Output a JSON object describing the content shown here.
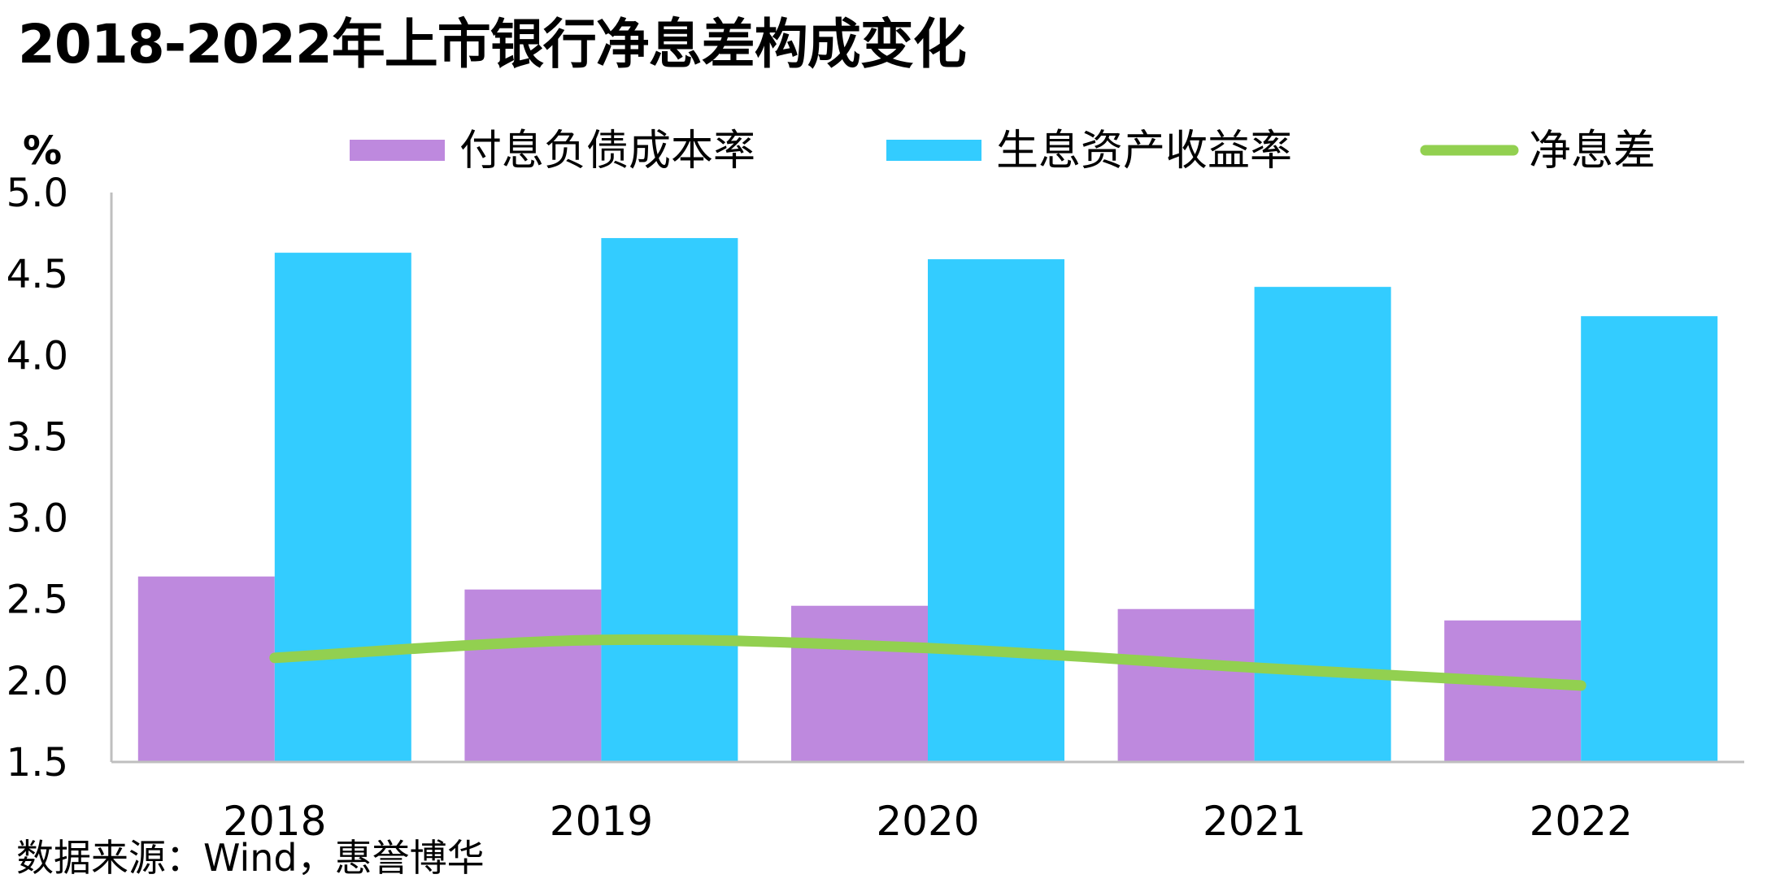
{
  "title": "2018-2022年上市银行净息差构成变化",
  "source": "数据来源：Wind，惠誉博华",
  "chart_data": {
    "type": "bar",
    "unit_label": "%",
    "categories": [
      "2018",
      "2019",
      "2020",
      "2021",
      "2022"
    ],
    "ylim": [
      1.5,
      5.0
    ],
    "yticks": [
      "1.5",
      "2.0",
      "2.5",
      "3.0",
      "3.5",
      "4.0",
      "4.5",
      "5.0"
    ],
    "legend_position": "top",
    "grid": false,
    "series": [
      {
        "name": "付息负债成本率",
        "kind": "bar",
        "color": "#BE89DE",
        "values": [
          2.64,
          2.56,
          2.46,
          2.44,
          2.37
        ]
      },
      {
        "name": "生息资产收益率",
        "kind": "bar",
        "color": "#33CCFF",
        "values": [
          4.63,
          4.72,
          4.59,
          4.42,
          4.24
        ]
      },
      {
        "name": "净息差",
        "kind": "line",
        "color": "#92D050",
        "values": [
          2.14,
          2.25,
          2.2,
          2.08,
          1.97
        ]
      }
    ]
  }
}
